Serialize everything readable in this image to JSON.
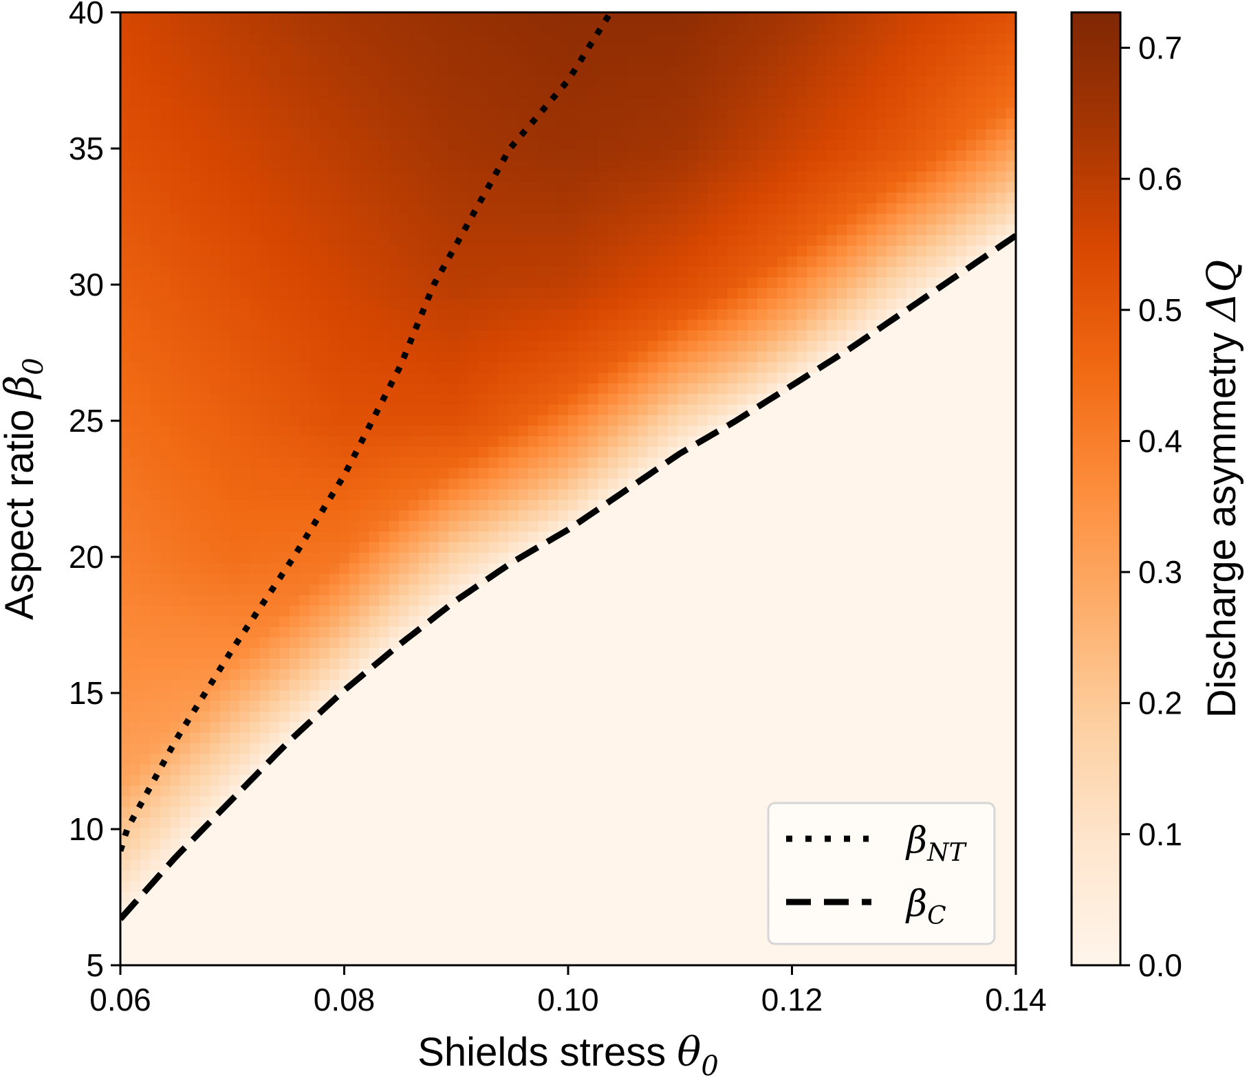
{
  "chart_data": {
    "type": "heatmap",
    "title": "",
    "xlabel": "Shields stress",
    "xlabel_symbol": "θ",
    "xlabel_subscript": "0",
    "ylabel": "Aspect ratio",
    "ylabel_symbol": "β",
    "ylabel_subscript": "0",
    "xlim": [
      0.06,
      0.14
    ],
    "ylim": [
      5,
      40
    ],
    "x_ticks": [
      "0.06",
      "0.08",
      "0.10",
      "0.12",
      "0.14"
    ],
    "x_tick_values": [
      0.06,
      0.08,
      0.1,
      0.12,
      0.14
    ],
    "y_ticks": [
      "5",
      "10",
      "15",
      "20",
      "25",
      "30",
      "35",
      "40"
    ],
    "y_tick_values": [
      5,
      10,
      15,
      20,
      25,
      30,
      35,
      40
    ],
    "colorbar": {
      "label": "Discharge asymmetry",
      "label_symbol": "ΔQ",
      "colormap": "Oranges",
      "range": [
        0.0,
        0.727
      ],
      "ticks": [
        "0.0",
        "0.1",
        "0.2",
        "0.3",
        "0.4",
        "0.5",
        "0.6",
        "0.7"
      ],
      "tick_values": [
        0.0,
        0.1,
        0.2,
        0.3,
        0.4,
        0.5,
        0.6,
        0.7
      ],
      "colors": [
        "#fff5eb",
        "#fee6ce",
        "#fdd0a2",
        "#fdae6b",
        "#fd8d3c",
        "#f16913",
        "#d94801",
        "#a63603",
        "#7f2704"
      ]
    },
    "grid_theta": [
      0.06,
      0.07,
      0.08,
      0.09,
      0.1,
      0.11,
      0.12,
      0.13,
      0.14
    ],
    "grid_beta": [
      5,
      10,
      15,
      20,
      25,
      30,
      35,
      40
    ],
    "grid_values": [
      [
        0.0,
        0.0,
        0.0,
        0.0,
        0.0,
        0.0,
        0.0,
        0.0,
        0.0
      ],
      [
        0.27,
        0.0,
        0.0,
        0.0,
        0.0,
        0.0,
        0.0,
        0.0,
        0.0
      ],
      [
        0.35,
        0.33,
        0.0,
        0.0,
        0.0,
        0.0,
        0.0,
        0.0,
        0.0
      ],
      [
        0.4,
        0.44,
        0.42,
        0.33,
        0.0,
        0.0,
        0.0,
        0.0,
        0.0
      ],
      [
        0.44,
        0.48,
        0.52,
        0.52,
        0.45,
        0.35,
        0.0,
        0.0,
        0.0
      ],
      [
        0.48,
        0.52,
        0.56,
        0.6,
        0.59,
        0.53,
        0.45,
        0.33,
        0.0
      ],
      [
        0.52,
        0.56,
        0.6,
        0.64,
        0.66,
        0.64,
        0.57,
        0.5,
        0.4
      ],
      [
        0.55,
        0.6,
        0.64,
        0.67,
        0.69,
        0.69,
        0.64,
        0.57,
        0.52
      ]
    ],
    "series": [
      {
        "name": "β_NT",
        "label_main": "β",
        "label_sub": "NT",
        "style": "dotted",
        "x": [
          0.06,
          0.0606,
          0.065,
          0.07,
          0.0755,
          0.08,
          0.085,
          0.088,
          0.0948,
          0.1,
          0.1038
        ],
        "y": [
          9.2,
          10.0,
          13.3,
          16.6,
          20.0,
          23.0,
          27.0,
          30.0,
          35.0,
          37.5,
          40.0
        ]
      },
      {
        "name": "β_C",
        "label_main": "β",
        "label_sub": "C",
        "style": "dashed",
        "x": [
          0.06,
          0.065,
          0.07,
          0.075,
          0.08,
          0.085,
          0.09,
          0.095,
          0.1,
          0.105,
          0.11,
          0.115,
          0.12,
          0.125,
          0.13,
          0.135,
          0.14
        ],
        "y": [
          6.7,
          9.0,
          11.1,
          13.2,
          15.1,
          16.8,
          18.4,
          19.8,
          21.0,
          22.4,
          23.8,
          25.0,
          26.3,
          27.6,
          29.0,
          30.4,
          31.8
        ]
      }
    ],
    "legend": {
      "location": "lower-right"
    }
  }
}
